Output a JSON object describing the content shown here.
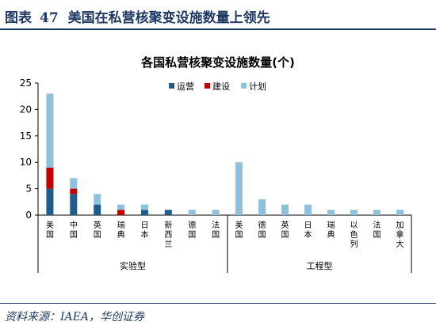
{
  "header": {
    "label": "图表",
    "number": "47",
    "title": "美国在私营核聚变设施数量上领先"
  },
  "source": "资料来源：IAEA，华创证券",
  "colors": {
    "operating": "#1f5c8b",
    "construction": "#c00000",
    "planned": "#8fc1dc",
    "header": "#1f3864"
  },
  "chart_data": {
    "type": "bar",
    "stacked": true,
    "title": "各国私营核聚变设施数量(个)",
    "ylim": [
      0,
      25
    ],
    "yticks": [
      0,
      5,
      10,
      15,
      20,
      25
    ],
    "legend_position": "top-center",
    "categories": [
      "美国",
      "中国",
      "英国",
      "瑞典",
      "日本",
      "新西兰",
      "德国",
      "法国",
      "美国",
      "德国",
      "英国",
      "日本",
      "瑞典",
      "以色列",
      "法国",
      "加拿大"
    ],
    "groups": [
      {
        "label": "实验型",
        "categories": 8
      },
      {
        "label": "工程型",
        "categories": 8
      }
    ],
    "series": [
      {
        "name": "运营",
        "color": "#1f5c8b",
        "values": [
          5,
          4,
          2,
          0,
          1,
          1,
          0,
          0,
          0,
          0,
          0,
          0,
          0,
          0,
          0,
          0
        ]
      },
      {
        "name": "建设",
        "color": "#c00000",
        "values": [
          4,
          1,
          0,
          1,
          0,
          0,
          0,
          0,
          0,
          0,
          0,
          0,
          0,
          0,
          0,
          0
        ]
      },
      {
        "name": "计划",
        "color": "#8fc1dc",
        "values": [
          14,
          2,
          2,
          1,
          1,
          0,
          1,
          1,
          10,
          3,
          2,
          2,
          1,
          1,
          1,
          1
        ]
      }
    ]
  }
}
